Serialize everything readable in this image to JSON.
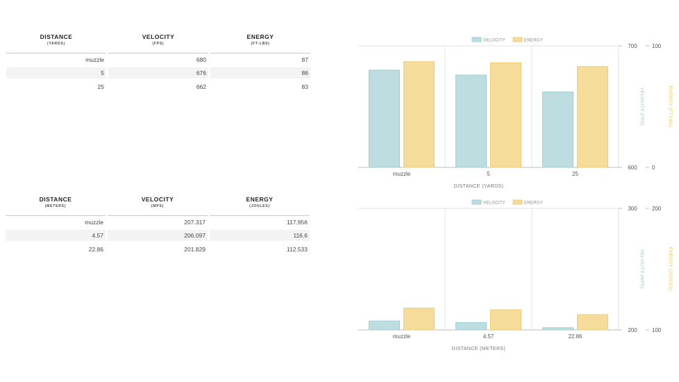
{
  "tables": [
    {
      "headers": [
        {
          "title": "DISTANCE",
          "unit": "(YARDS)"
        },
        {
          "title": "VELOCITY",
          "unit": "(FPS)"
        },
        {
          "title": "ENERGY",
          "unit": "(FT-LBS)"
        }
      ],
      "rows": [
        [
          "muzzle",
          "680",
          "87"
        ],
        [
          "5",
          "676",
          "86"
        ],
        [
          "25",
          "662",
          "83"
        ]
      ]
    },
    {
      "headers": [
        {
          "title": "DISTANCE",
          "unit": "(METERS)"
        },
        {
          "title": "VELOCITY",
          "unit": "(MPS)"
        },
        {
          "title": "ENERGY",
          "unit": "(JOULES)"
        }
      ],
      "rows": [
        [
          "muzzle",
          "207.317",
          "117.956"
        ],
        [
          "4.57",
          "206.097",
          "116.6"
        ],
        [
          "22.86",
          "201.829",
          "112.533"
        ]
      ]
    }
  ],
  "colors": {
    "velocity_fill": "#bddde0",
    "velocity_stroke": "#a3cdd1",
    "energy_fill": "#f5dc9a",
    "energy_stroke": "#edcc75",
    "velocity_text": "#93c8cd",
    "energy_text": "#edc868"
  },
  "chart_data": [
    {
      "type": "bar",
      "categories": [
        "muzzle",
        "5",
        "25"
      ],
      "series": [
        {
          "name": "VELOCITY",
          "values": [
            680,
            676,
            662
          ],
          "axis": "left"
        },
        {
          "name": "ENERGY",
          "values": [
            87,
            86,
            83
          ],
          "axis": "right"
        }
      ],
      "xlabel": "DISTANCE (YARDS)",
      "ylabel": "VELOCITY (FPS)",
      "y2label": "ENERGY (FT-LBS)",
      "ylim": [
        600,
        700
      ],
      "y2lim": [
        0,
        100
      ],
      "yticks": [
        "700",
        "600"
      ],
      "y2ticks": [
        "100",
        "0"
      ],
      "legend": "top-center",
      "grid": true
    },
    {
      "type": "bar",
      "categories": [
        "muzzle",
        "4.57",
        "22.86"
      ],
      "series": [
        {
          "name": "VELOCITY",
          "values": [
            207.317,
            206.097,
            201.829
          ],
          "axis": "left"
        },
        {
          "name": "ENERGY",
          "values": [
            117.956,
            116.6,
            112.533
          ],
          "axis": "right"
        }
      ],
      "xlabel": "DISTANCE (METERS)",
      "ylabel": "VELOCITY (MPS)",
      "y2label": "ENERGY (JOULES)",
      "ylim": [
        200,
        300
      ],
      "y2lim": [
        100,
        200
      ],
      "yticks": [
        "300",
        "200"
      ],
      "y2ticks": [
        "200",
        "100"
      ],
      "legend": "top-center",
      "grid": true
    }
  ]
}
